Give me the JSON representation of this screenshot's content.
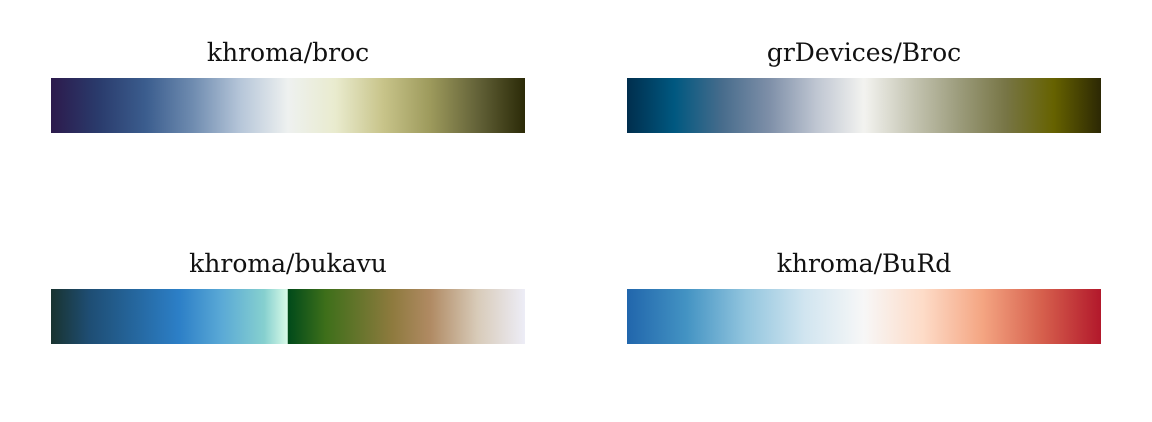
{
  "chart_data": [
    {
      "type": "heatmap",
      "title": "khroma/broc",
      "colors": [
        "#2c1a4c",
        "#2a3b6c",
        "#3b5d8e",
        "#6f8cb0",
        "#b6c6d9",
        "#eef1f0",
        "#e9ebce",
        "#c8c48a",
        "#9d9a5c",
        "#636238",
        "#2b2a07"
      ]
    },
    {
      "type": "heatmap",
      "title": "grDevices/Broc",
      "colors": [
        "#002e4d",
        "#005880",
        "#476c8c",
        "#7e8fa8",
        "#bfc6d2",
        "#f3f3f0",
        "#c6c6b4",
        "#9c9c7c",
        "#777545",
        "#666200",
        "#2c2804"
      ]
    },
    {
      "type": "heatmap",
      "title": "khroma/bukavu",
      "colors": [
        "#19332f",
        "#1e4d73",
        "#2c7fc7",
        "#5aa9d6",
        "#86d0cf",
        "#d9fae8",
        "#004a1a",
        "#3e6f1a",
        "#8e7a3e",
        "#b08a63",
        "#d8cbb9",
        "#ededf7"
      ],
      "stops": [
        0,
        0.08,
        0.27,
        0.36,
        0.45,
        0.499,
        0.5,
        0.58,
        0.72,
        0.8,
        0.9,
        1
      ]
    },
    {
      "type": "heatmap",
      "title": "khroma/BuRd",
      "colors": [
        "#2166ac",
        "#4393c3",
        "#92c5de",
        "#d1e5f0",
        "#f7f7f7",
        "#fddbc7",
        "#f4a582",
        "#d6604d",
        "#b2182b"
      ]
    }
  ]
}
